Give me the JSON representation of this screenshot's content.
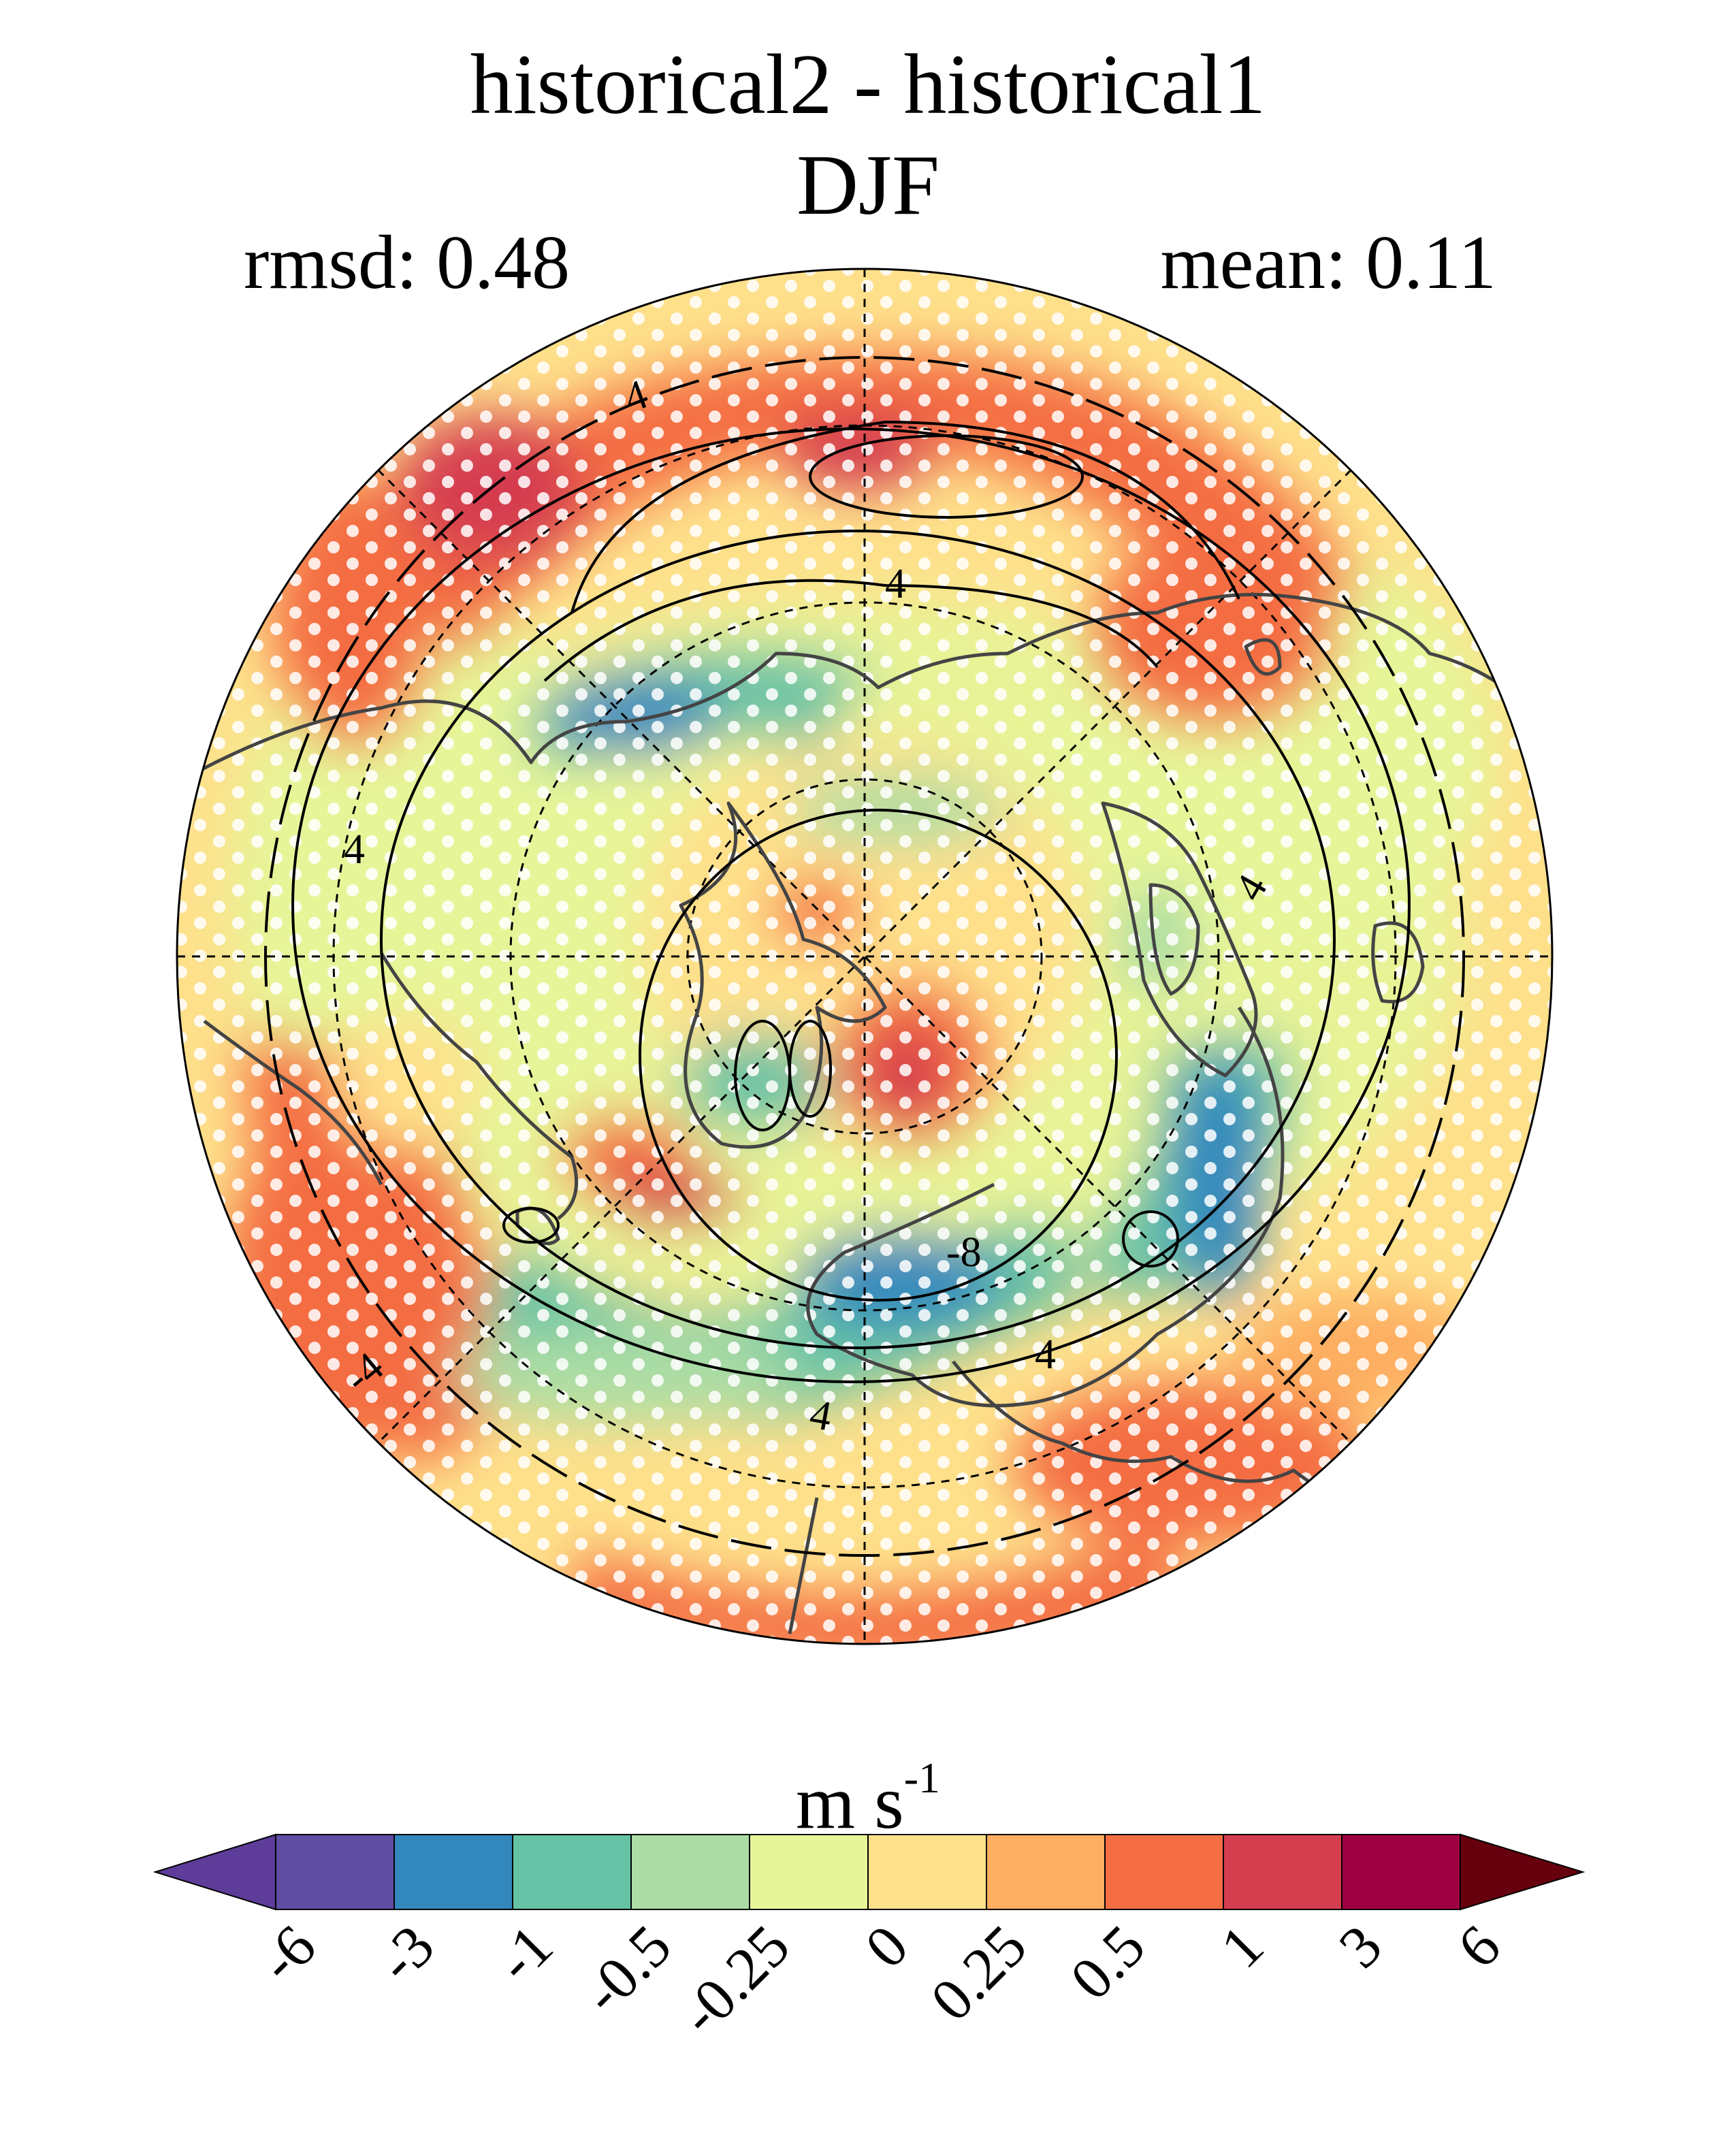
{
  "title": "historical2 - historical1",
  "season": "DJF",
  "rmsd_text": "rmsd: 0.48",
  "mean_text": "mean: 0.11",
  "colorbar": {
    "units_base": "m s",
    "units_exp": "-1",
    "levels": [
      "-6",
      "-3",
      "-1",
      "-0.5",
      "-0.25",
      "0",
      "0.25",
      "0.5",
      "1",
      "3",
      "6"
    ],
    "colors": [
      "#5e3c99",
      "#5f4ea2",
      "#3288bd",
      "#66c2a5",
      "#abdda4",
      "#e6f598",
      "#fee08b",
      "#fdae61",
      "#f46d43",
      "#d53e4f",
      "#9e0142",
      "#67000d"
    ]
  },
  "map": {
    "projection": "north-polar-stereographic",
    "contour_labels": [
      "4",
      "4",
      "4",
      "4",
      "-8",
      "4",
      "4",
      "-4"
    ],
    "stippling": "white dots"
  }
}
